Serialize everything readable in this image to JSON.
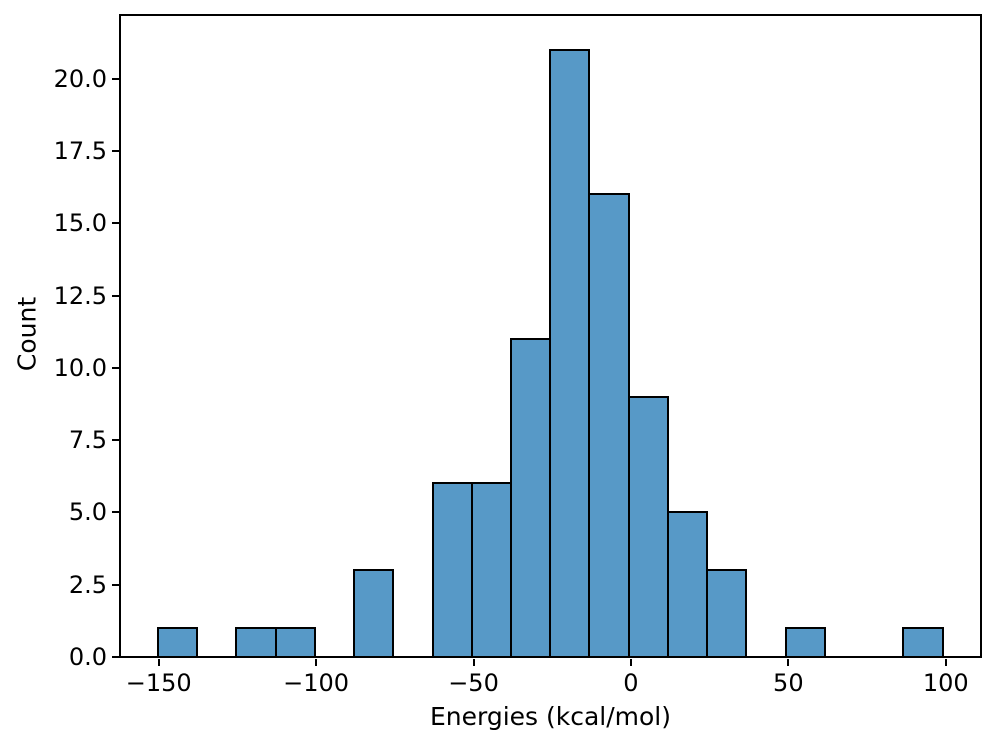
{
  "chart_data": {
    "type": "histogram",
    "title": "",
    "xlabel": "Energies (kcal/mol)",
    "ylabel": "Count",
    "bins": {
      "edges": [
        -150.3,
        -137.8,
        -125.4,
        -112.9,
        -100.4,
        -88.0,
        -75.5,
        -63.0,
        -50.6,
        -38.1,
        -25.7,
        -13.2,
        -0.7,
        11.7,
        24.2,
        36.7,
        49.1,
        61.6,
        74.1,
        86.5,
        99.0
      ],
      "counts": [
        1,
        0,
        1,
        1,
        0,
        3,
        0,
        6,
        6,
        11,
        21,
        16,
        9,
        5,
        3,
        0,
        1,
        0,
        0,
        1
      ]
    },
    "total_count": 85,
    "xlim": [
      -162.3,
      111.2
    ],
    "ylim": [
      0,
      22.2
    ],
    "xticks": [
      {
        "value": -150,
        "label": "−150"
      },
      {
        "value": -100,
        "label": "−100"
      },
      {
        "value": -50,
        "label": "−50"
      },
      {
        "value": 0,
        "label": "0"
      },
      {
        "value": 50,
        "label": "50"
      },
      {
        "value": 100,
        "label": "100"
      }
    ],
    "yticks": [
      {
        "value": 0,
        "label": "0.0"
      },
      {
        "value": 2.5,
        "label": "2.5"
      },
      {
        "value": 5,
        "label": "5.0"
      },
      {
        "value": 7.5,
        "label": "7.5"
      },
      {
        "value": 10,
        "label": "10.0"
      },
      {
        "value": 12.5,
        "label": "12.5"
      },
      {
        "value": 15,
        "label": "15.0"
      },
      {
        "value": 17.5,
        "label": "17.5"
      },
      {
        "value": 20,
        "label": "20.0"
      }
    ],
    "grid": false,
    "legend": null,
    "colors": {
      "bar_fill": "#5799C7",
      "bar_edge": "#000000",
      "axis": "#000000",
      "background": "#FFFFFF",
      "text": "#000000"
    }
  }
}
